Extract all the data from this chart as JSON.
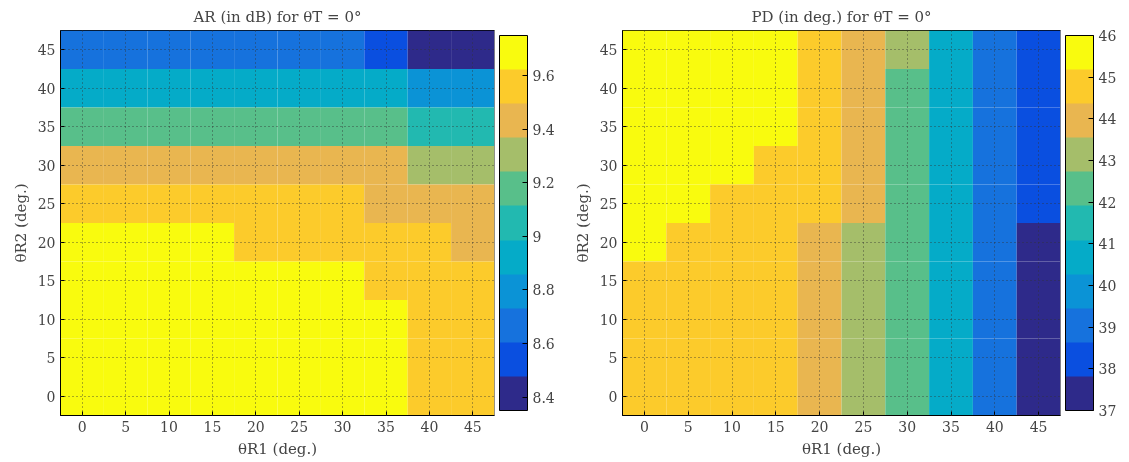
{
  "chart_data": [
    {
      "type": "heatmap",
      "title": "AR (in dB) for θT = 0°",
      "xlabel": "θR1 (deg.)",
      "ylabel": "θR2 (deg.)",
      "categories": [
        "0",
        "5",
        "10",
        "15",
        "20",
        "25",
        "30",
        "35",
        "40",
        "45"
      ],
      "y_categories": [
        "45",
        "40",
        "35",
        "30",
        "25",
        "20",
        "15",
        "10",
        "5",
        "0"
      ],
      "clim": [
        8.35,
        9.75
      ],
      "cticks": [
        8.4,
        8.6,
        8.8,
        9,
        9.2,
        9.4,
        9.6
      ],
      "grid": true,
      "cells": [
        [
          8.66,
          8.66,
          8.66,
          8.66,
          8.66,
          8.64,
          8.62,
          8.55,
          8.45,
          8.45
        ],
        [
          8.9,
          8.9,
          8.9,
          8.9,
          8.9,
          8.89,
          8.88,
          8.87,
          8.85,
          8.8
        ],
        [
          9.15,
          9.15,
          9.15,
          9.15,
          9.15,
          9.14,
          9.13,
          9.12,
          9.08,
          9.05
        ],
        [
          9.42,
          9.42,
          9.42,
          9.42,
          9.41,
          9.4,
          9.39,
          9.38,
          9.3,
          9.28
        ],
        [
          9.55,
          9.55,
          9.55,
          9.55,
          9.54,
          9.52,
          9.5,
          9.45,
          9.45,
          9.42
        ],
        [
          9.66,
          9.66,
          9.66,
          9.66,
          9.6,
          9.58,
          9.56,
          9.55,
          9.5,
          9.47
        ],
        [
          9.7,
          9.7,
          9.7,
          9.7,
          9.7,
          9.68,
          9.66,
          9.58,
          9.55,
          9.52
        ],
        [
          9.7,
          9.7,
          9.7,
          9.7,
          9.7,
          9.7,
          9.68,
          9.64,
          9.58,
          9.55
        ],
        [
          9.7,
          9.7,
          9.7,
          9.7,
          9.7,
          9.7,
          9.7,
          9.66,
          9.6,
          9.56
        ],
        [
          9.7,
          9.7,
          9.7,
          9.7,
          9.7,
          9.7,
          9.7,
          9.68,
          9.62,
          9.57
        ]
      ]
    },
    {
      "type": "heatmap",
      "title": "PD (in deg.) for θT = 0°",
      "xlabel": "θR1 (deg.)",
      "ylabel": "θR2 (deg.)",
      "categories": [
        "0",
        "5",
        "10",
        "15",
        "20",
        "25",
        "30",
        "35",
        "40",
        "45"
      ],
      "y_categories": [
        "45",
        "40",
        "35",
        "30",
        "25",
        "20",
        "15",
        "10",
        "5",
        "0"
      ],
      "clim": [
        37,
        46
      ],
      "cticks": [
        37,
        38,
        39,
        40,
        41,
        42,
        43,
        44,
        45,
        46
      ],
      "grid": true,
      "cells": [
        [
          45.6,
          45.6,
          45.6,
          45.6,
          44.7,
          43.8,
          43.0,
          40.7,
          39.0,
          38.2
        ],
        [
          45.6,
          45.6,
          45.6,
          45.6,
          44.7,
          43.8,
          42.3,
          40.7,
          39.0,
          38.2
        ],
        [
          45.6,
          45.6,
          45.6,
          45.6,
          44.7,
          43.8,
          42.3,
          40.7,
          39.0,
          38.2
        ],
        [
          45.6,
          45.6,
          45.6,
          44.7,
          44.7,
          43.8,
          42.3,
          40.7,
          39.0,
          38.2
        ],
        [
          45.6,
          45.6,
          44.7,
          44.7,
          44.7,
          43.8,
          42.3,
          40.7,
          39.0,
          38.2
        ],
        [
          45.6,
          44.7,
          44.7,
          44.7,
          43.8,
          43.0,
          42.3,
          40.7,
          39.0,
          37.4
        ],
        [
          44.7,
          44.7,
          44.7,
          44.7,
          43.8,
          43.0,
          42.3,
          40.7,
          39.0,
          37.4
        ],
        [
          44.7,
          44.7,
          44.7,
          44.7,
          43.8,
          43.0,
          42.3,
          40.7,
          39.0,
          37.4
        ],
        [
          44.7,
          44.7,
          44.7,
          44.7,
          43.8,
          43.0,
          42.3,
          40.7,
          39.0,
          37.4
        ],
        [
          44.7,
          44.7,
          44.7,
          44.7,
          43.8,
          43.0,
          42.3,
          40.7,
          39.0,
          37.4
        ]
      ]
    }
  ]
}
